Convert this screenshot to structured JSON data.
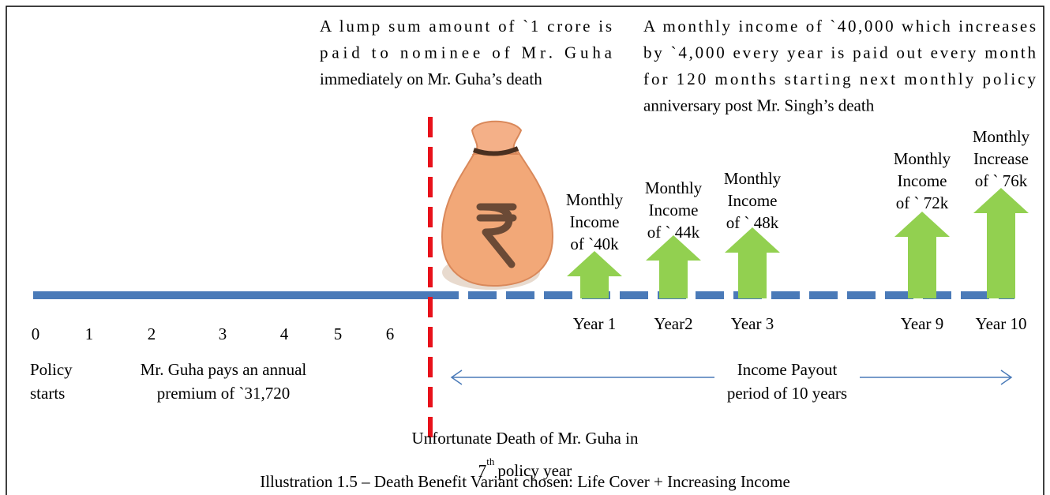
{
  "top_left_note": {
    "lines": [
      "A  lump sum amount of `1 crore is",
      "paid to nominee of Mr. Guha",
      "immediately on Mr. Guha’s death"
    ]
  },
  "top_right_note": {
    "lines": [
      "A monthly income of `40,000 which increases",
      "by `4,000 every year is paid out every month",
      "for 120 months starting next monthly policy",
      "anniversary post Mr. Singh’s death"
    ]
  },
  "policy_years": [
    "0",
    "1",
    "2",
    "3",
    "4",
    "5",
    "6"
  ],
  "policy_starts": [
    "Policy",
    "starts"
  ],
  "premium_note": [
    "Mr. Guha pays an annual",
    "premium of `31,720"
  ],
  "payouts": [
    {
      "year": "Year 1",
      "label": [
        "Monthly",
        "Income",
        "of `40k"
      ]
    },
    {
      "year": "Year2",
      "label": [
        "Monthly",
        "Income",
        "of ` 44k"
      ]
    },
    {
      "year": "Year 3",
      "label": [
        "Monthly",
        "Income",
        "of ` 48k"
      ]
    },
    {
      "year": "Year 9",
      "label": [
        "Monthly",
        "Income",
        "of ` 72k"
      ]
    },
    {
      "year": "Year 10",
      "label": [
        "Monthly",
        "Increase",
        "of ` 76k"
      ]
    }
  ],
  "payout_period": [
    "Income Payout",
    "period of 10 years"
  ],
  "death_note": {
    "line1": "Unfortunate Death of Mr. Guha in",
    "ordinal": "7",
    "suffix": "th",
    "line2": "policy year"
  },
  "caption": "Illustration 1.5 – Death Benefit Variant chosen: Life Cover + Increasing Income"
}
